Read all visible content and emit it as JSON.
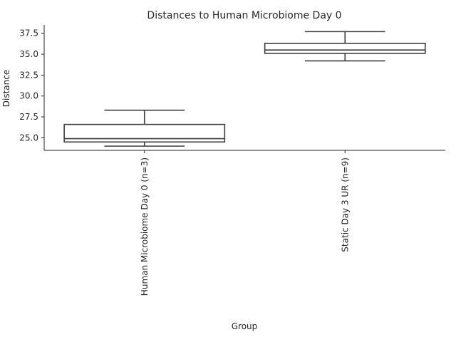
{
  "chart_data": {
    "type": "box",
    "title": "Distances to Human Microbiome Day 0",
    "xlabel": "Group",
    "ylabel": "Distance",
    "ylim": [
      23.5,
      38.5
    ],
    "yticks": [
      "25.0",
      "27.5",
      "30.0",
      "32.5",
      "35.0",
      "37.5"
    ],
    "grid": false,
    "categories": [
      "Human Microbiome Day 0 (n=3)",
      "Static Day 3 UR (n=9)"
    ],
    "series": [
      {
        "stats": [
          {
            "whislo": 24.0,
            "q1": 24.5,
            "med": 24.9,
            "q3": 26.6,
            "whishi": 28.3
          },
          {
            "whislo": 34.2,
            "q1": 35.1,
            "med": 35.5,
            "q3": 36.3,
            "whishi": 37.7
          }
        ]
      }
    ],
    "colors": {
      "box_edge": "#3d3d3d",
      "box_fill": "#ffffff",
      "text": "#262626"
    }
  }
}
